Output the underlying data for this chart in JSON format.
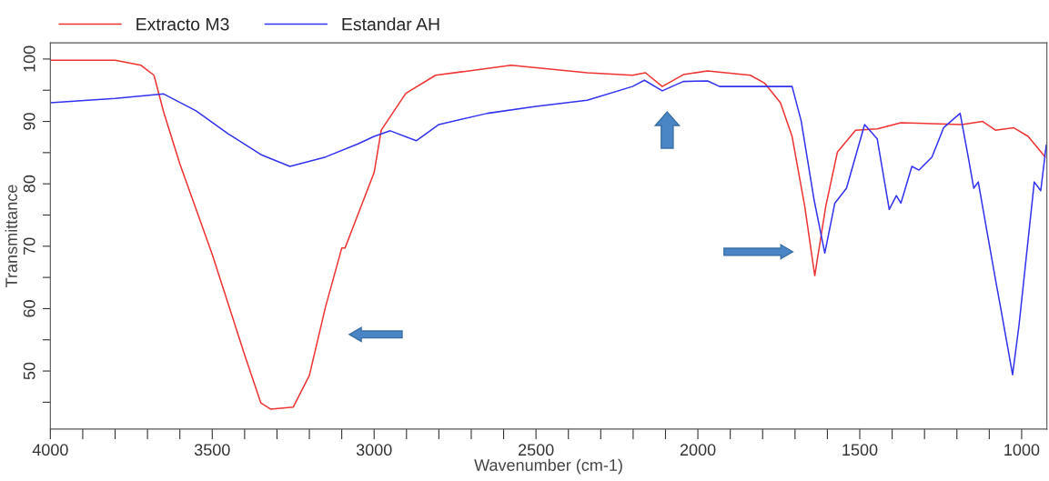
{
  "chart_data": {
    "type": "line",
    "xlabel": "Wavenumber (cm-1)",
    "ylabel": "Transmittance",
    "xlim": [
      4000,
      922
    ],
    "ylim": [
      40.7,
      102.6
    ],
    "xticks": [
      4000,
      {
        "value": 3900,
        "label": null
      },
      {
        "value": 3800,
        "label": null
      },
      {
        "value": 3700,
        "label": null
      },
      {
        "value": 3600,
        "label": null
      },
      3500,
      {
        "value": 3400,
        "label": null
      },
      {
        "value": 3300,
        "label": null
      },
      {
        "value": 3200,
        "label": null
      },
      {
        "value": 3100,
        "label": null
      },
      3000,
      {
        "value": 2900,
        "label": null
      },
      {
        "value": 2800,
        "label": null
      },
      {
        "value": 2700,
        "label": null
      },
      {
        "value": 2600,
        "label": null
      },
      2500,
      {
        "value": 2400,
        "label": null
      },
      {
        "value": 2300,
        "label": null
      },
      {
        "value": 2200,
        "label": null
      },
      {
        "value": 2100,
        "label": null
      },
      2000,
      {
        "value": 1900,
        "label": null
      },
      {
        "value": 1800,
        "label": null
      },
      {
        "value": 1700,
        "label": null
      },
      {
        "value": 1600,
        "label": null
      },
      1500,
      {
        "value": 1400,
        "label": null
      },
      {
        "value": 1300,
        "label": null
      },
      {
        "value": 1200,
        "label": null
      },
      {
        "value": 1100,
        "label": null
      },
      1000
    ],
    "yticks": [
      {
        "value": 45,
        "label": null
      },
      50,
      {
        "value": 55,
        "label": null
      },
      60,
      {
        "value": 65,
        "label": null
      },
      70,
      {
        "value": 75,
        "label": null
      },
      80,
      {
        "value": 85,
        "label": null
      },
      90,
      {
        "value": 95,
        "label": null
      },
      100
    ],
    "grid": false,
    "legend": "top left",
    "marker": "none",
    "line_style": "solid",
    "series": [
      {
        "name": "Extracto M3",
        "color": "#ee3333",
        "x": [
          4000,
          3800,
          3720,
          3680,
          3650,
          3600,
          3500,
          3400,
          3350,
          3320,
          3250,
          3200,
          3150,
          3100,
          3090,
          3000,
          2978,
          2902,
          2810,
          2577,
          2342,
          2202,
          2162,
          2110,
          2045,
          1970,
          1838,
          1793,
          1745,
          1709,
          1670,
          1639,
          1605,
          1569,
          1513,
          1446,
          1373,
          1185,
          1120,
          1081,
          1025,
          980,
          927
        ],
        "values": [
          99.8,
          99.8,
          99,
          97.4,
          91.5,
          83.2,
          68.7,
          52.6,
          44.9,
          43.9,
          44.2,
          49.3,
          60.3,
          69.7,
          69.7,
          81.8,
          88.6,
          94.5,
          97.4,
          99,
          97.8,
          97.4,
          97.8,
          95.6,
          97.5,
          98.1,
          97.4,
          96.1,
          93,
          87.6,
          76.4,
          65.3,
          76.4,
          85.1,
          88.6,
          88.8,
          89.8,
          89.5,
          90,
          88.6,
          89,
          87.6,
          84.3
        ]
      },
      {
        "name": "Estandar AH",
        "color": "#3333ee",
        "x": [
          4000,
          3800,
          3650,
          3550,
          3450,
          3350,
          3260,
          3150,
          3050,
          3000,
          2950,
          2870,
          2800,
          2650,
          2500,
          2342,
          2202,
          2165,
          2110,
          2045,
          1970,
          1933,
          1709,
          1681,
          1641,
          1608,
          1577,
          1541,
          1485,
          1446,
          1409,
          1387,
          1373,
          1339,
          1317,
          1277,
          1241,
          1190,
          1165,
          1148,
          1134,
          1081,
          1064,
          1028,
          1008,
          961,
          941,
          924
        ],
        "values": [
          93,
          93.7,
          94.4,
          91.7,
          88,
          84.7,
          82.8,
          84.3,
          86.4,
          87.6,
          88.5,
          86.9,
          89.5,
          91.3,
          92.4,
          93.4,
          95.6,
          96.6,
          94.9,
          96.4,
          96.5,
          95.6,
          95.6,
          90.1,
          77.4,
          68.9,
          76.9,
          79.3,
          89.5,
          87.2,
          75.9,
          78.1,
          76.9,
          82.8,
          82.2,
          84.3,
          89,
          91.3,
          84.3,
          79.3,
          80.3,
          64.7,
          59.9,
          49.4,
          57.4,
          80.3,
          78.9,
          86.2
        ]
      }
    ]
  }
}
